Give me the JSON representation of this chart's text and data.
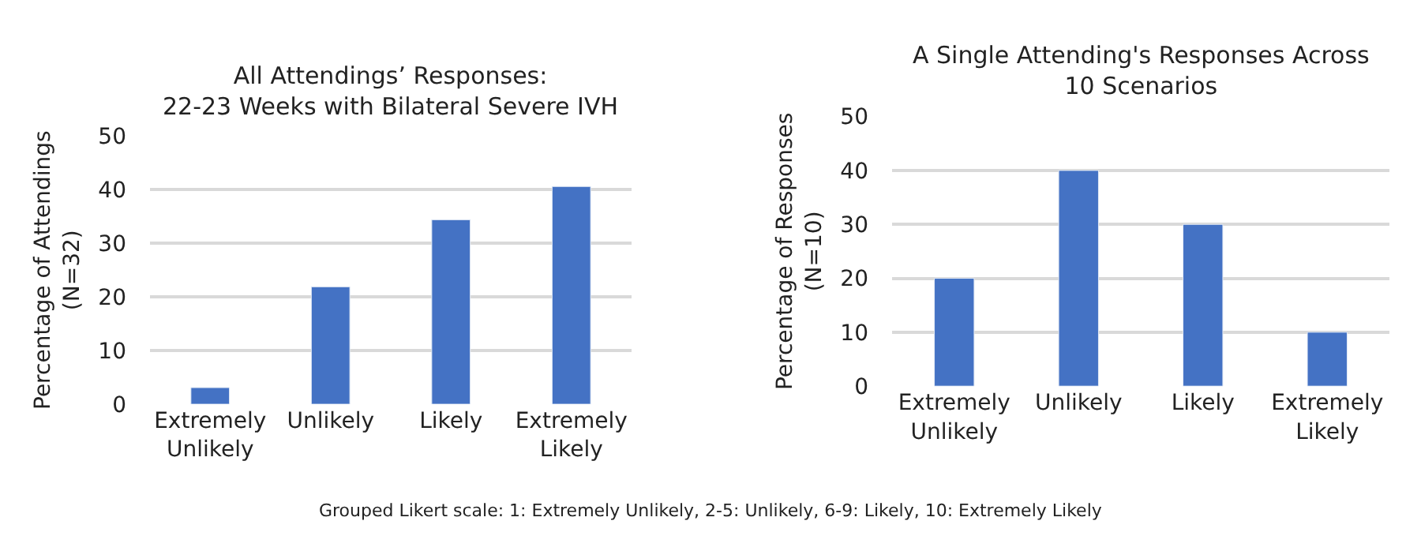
{
  "chart_data": [
    {
      "type": "bar",
      "title": "All Attendings’ Responses:\n22-23 Weeks with Bilateral Severe IVH",
      "ylabel": "Percentage of Attendings\n(N=32)",
      "categories": [
        "Extremely Unlikely",
        "Unlikely",
        "Likely",
        "Extremely Likely"
      ],
      "series": [
        {
          "color": "#4472c4",
          "values": [
            3.1,
            21.9,
            34.4,
            40.6
          ]
        }
      ],
      "ylim": [
        0,
        50
      ],
      "yticks": [
        0,
        10,
        20,
        30,
        40,
        50
      ],
      "grid": "y",
      "annotations": [
        "Grouped Likert scale: 1: Extremely Unlikely, 2-5: Unlikely, 6-9: Likely, 10: Extremely Likely"
      ]
    },
    {
      "type": "bar",
      "title": "A Single Attending's Responses Across\n10 Scenarios",
      "ylabel": "Percentage of Responses\n(N=10)",
      "categories": [
        "Extremely Unlikely",
        "Unlikely",
        "Likely",
        "Extremely Likely"
      ],
      "series": [
        {
          "color": "#4472c4",
          "values": [
            20,
            40,
            30,
            10
          ]
        }
      ],
      "ylim": [
        0,
        50
      ],
      "yticks": [
        0,
        10,
        20,
        30,
        40,
        50
      ],
      "grid": "y"
    }
  ]
}
